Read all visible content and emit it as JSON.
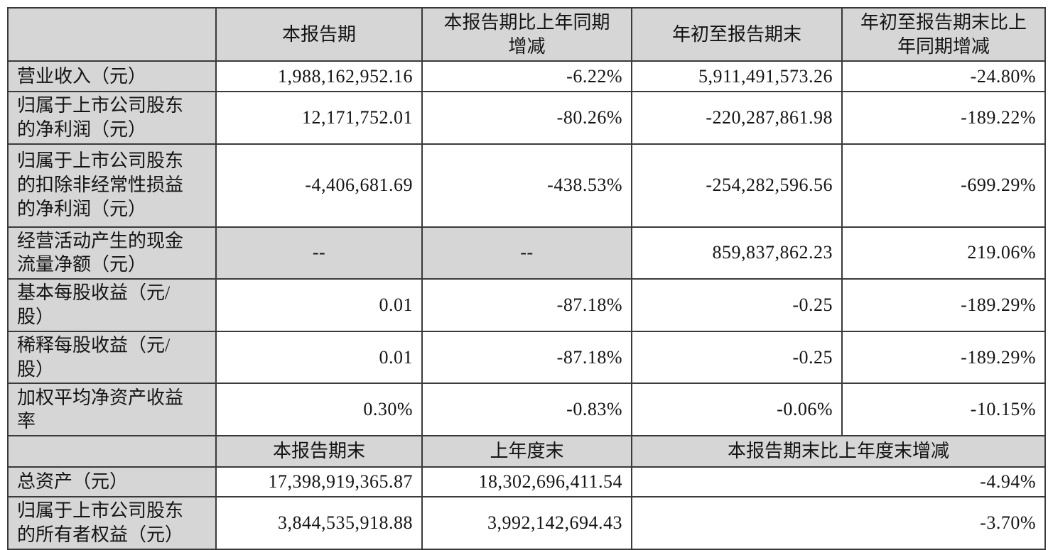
{
  "table": {
    "colors": {
      "shaded_bg": "#d6d6d6",
      "cell_bg": "#ffffff",
      "border": "#3a3a3a",
      "text": "#141414",
      "page_bg": "#ffffff"
    },
    "header_row_1": {
      "corner": "",
      "cols": [
        "本报告期",
        "本报告期比上年同期\n增减",
        "年初至报告期末",
        "年初至报告期末比上\n年同期增减"
      ]
    },
    "rows_section_1": [
      {
        "label": "营业收入（元）",
        "cells": [
          {
            "v": "1,988,162,952.16"
          },
          {
            "v": "-6.22%"
          },
          {
            "v": "5,911,491,573.26"
          },
          {
            "v": "-24.80%"
          }
        ]
      },
      {
        "label": "归属于上市公司股东\n的净利润（元）",
        "cells": [
          {
            "v": "12,171,752.01"
          },
          {
            "v": "-80.26%"
          },
          {
            "v": "-220,287,861.98"
          },
          {
            "v": "-189.22%"
          }
        ]
      },
      {
        "label": "归属于上市公司股东\n的扣除非经常性损益\n的净利润（元）",
        "cells": [
          {
            "v": "-4,406,681.69"
          },
          {
            "v": "-438.53%"
          },
          {
            "v": "-254,282,596.56"
          },
          {
            "v": "-699.29%"
          }
        ]
      },
      {
        "label": "经营活动产生的现金\n流量净额（元）",
        "cells": [
          {
            "v": "--",
            "shaded": true,
            "center": true
          },
          {
            "v": "--",
            "shaded": true,
            "center": true
          },
          {
            "v": "859,837,862.23"
          },
          {
            "v": "219.06%"
          }
        ]
      },
      {
        "label": "基本每股收益（元/\n股）",
        "cells": [
          {
            "v": "0.01"
          },
          {
            "v": "-87.18%"
          },
          {
            "v": "-0.25"
          },
          {
            "v": "-189.29%"
          }
        ]
      },
      {
        "label": "稀释每股收益（元/\n股）",
        "cells": [
          {
            "v": "0.01"
          },
          {
            "v": "-87.18%"
          },
          {
            "v": "-0.25"
          },
          {
            "v": "-189.29%"
          }
        ]
      },
      {
        "label": "加权平均净资产收益\n率",
        "cells": [
          {
            "v": "0.30%"
          },
          {
            "v": "-0.83%"
          },
          {
            "v": "-0.06%"
          },
          {
            "v": "-10.15%"
          }
        ]
      }
    ],
    "header_row_2": {
      "corner": "",
      "cols": [
        "本报告期末",
        "上年度末",
        "本报告期末比上年度末增减"
      ]
    },
    "rows_section_2": [
      {
        "label": "总资产（元）",
        "cells": [
          {
            "v": "17,398,919,365.87"
          },
          {
            "v": "18,302,696,411.54"
          },
          {
            "v": "-4.94%",
            "span": 2
          }
        ]
      },
      {
        "label": "归属于上市公司股东\n的所有者权益（元）",
        "cells": [
          {
            "v": "3,844,535,918.88"
          },
          {
            "v": "3,992,142,694.43"
          },
          {
            "v": "-3.70%",
            "span": 2
          }
        ]
      }
    ]
  }
}
